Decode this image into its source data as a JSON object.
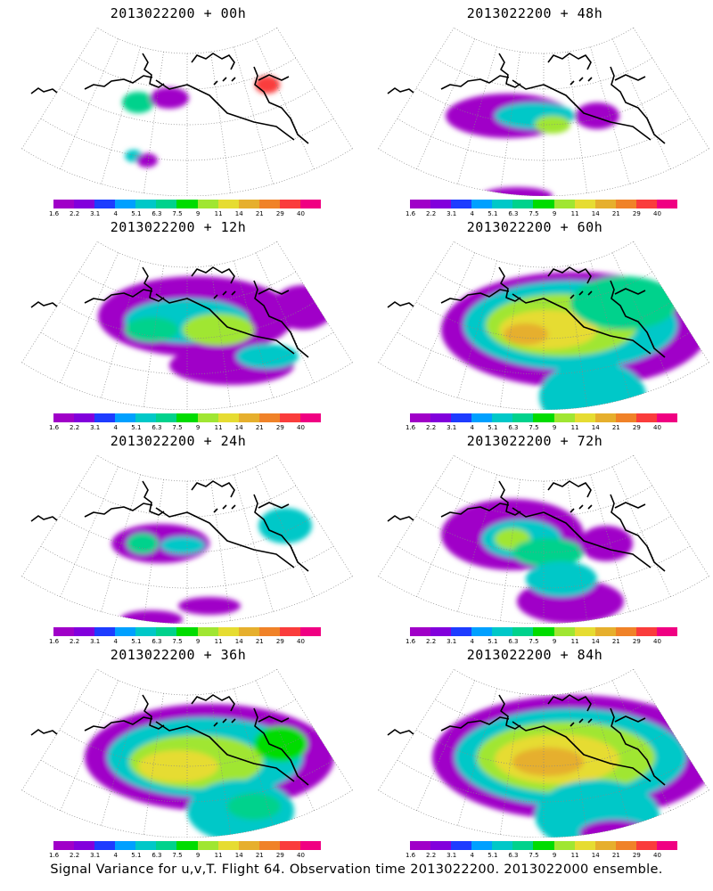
{
  "colorbar": {
    "labels": [
      "1.6",
      "2.2",
      "3.1",
      "4",
      "5.1",
      "6.3",
      "7.5",
      "9",
      "11",
      "14",
      "21",
      "29",
      "40"
    ],
    "colors": [
      "#a000c8",
      "#8200dc",
      "#1e3cff",
      "#00a0ff",
      "#00c8c8",
      "#00d28c",
      "#00dc00",
      "#a0e632",
      "#e6dc32",
      "#e6af2d",
      "#f08228",
      "#fa3c3c",
      "#f00082"
    ]
  },
  "panels": [
    {
      "title": "2013022200 + 00h",
      "level": 0
    },
    {
      "title": "2013022200 + 48h",
      "level": 4
    },
    {
      "title": "2013022200 + 12h",
      "level": 1
    },
    {
      "title": "2013022200 + 60h",
      "level": 5
    },
    {
      "title": "2013022200 + 24h",
      "level": 2
    },
    {
      "title": "2013022200 + 72h",
      "level": 6
    },
    {
      "title": "2013022200 + 36h",
      "level": 3
    },
    {
      "title": "2013022200 + 84h",
      "level": 7
    }
  ],
  "caption": "Signal Variance for u,v,T. Flight 64. Observation time 2013022200. 2013022000 ensemble."
}
